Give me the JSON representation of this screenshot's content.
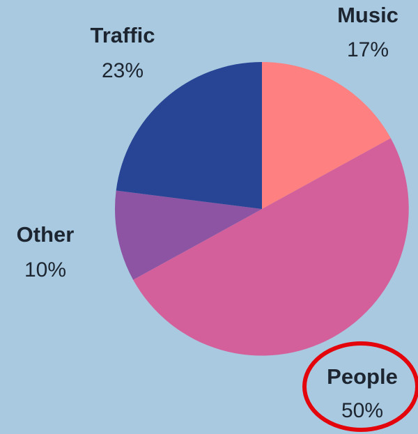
{
  "chart_data": {
    "type": "pie",
    "slices": [
      {
        "label": "Music",
        "value": 17,
        "value_label": "17%",
        "color": "#fe8080"
      },
      {
        "label": "People",
        "value": 50,
        "value_label": "50%",
        "color": "#d3609a"
      },
      {
        "label": "Other",
        "value": 10,
        "value_label": "10%",
        "color": "#8c54a2"
      },
      {
        "label": "Traffic",
        "value": 23,
        "value_label": "23%",
        "color": "#284595"
      }
    ],
    "start": "12 o'clock",
    "direction": "clockwise",
    "legend": "none",
    "highlight": {
      "slice": "People",
      "style": "red ellipse around label",
      "color": "#e4040b"
    }
  },
  "colors": {
    "background": "#a9c9e0",
    "text": "#1c2530"
  }
}
